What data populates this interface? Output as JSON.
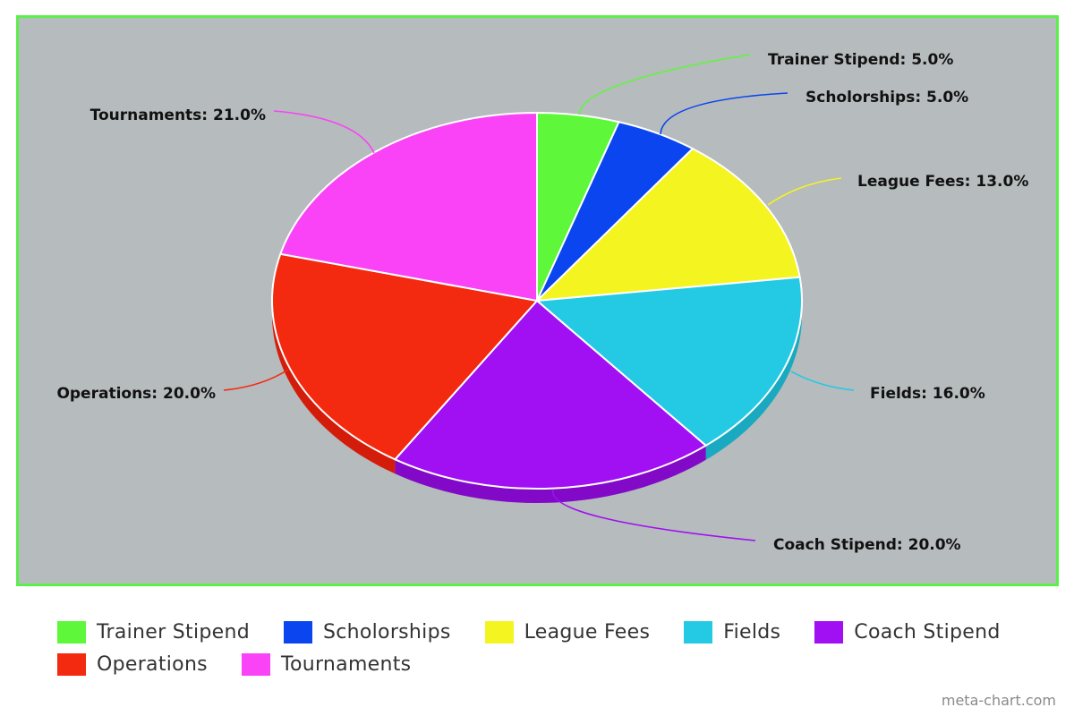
{
  "chart_data": {
    "type": "pie",
    "style": "3d",
    "categories": [
      "Trainer Stipend",
      "Scholorships",
      "League Fees",
      "Fields",
      "Coach Stipend",
      "Operations",
      "Tournaments"
    ],
    "values": [
      5.0,
      5.0,
      13.0,
      16.0,
      20.0,
      20.0,
      21.0
    ],
    "labels": [
      "Trainer Stipend: 5.0%",
      "Scholorships: 5.0%",
      "League Fees: 13.0%",
      "Fields: 16.0%",
      "Coach Stipend: 20.0%",
      "Operations: 20.0%",
      "Tournaments: 21.0%"
    ],
    "colors": [
      "#5ef73a",
      "#0a45f0",
      "#f4f421",
      "#24c9e4",
      "#a010f2",
      "#f42a10",
      "#fa42f6"
    ],
    "side_colors": [
      "#3fc426",
      "#0632b8",
      "#c9c91a",
      "#19a9c0",
      "#8209c8",
      "#d41c0a",
      "#d02ccc"
    ],
    "background": "#b6bbbd",
    "border_color": "#5bef4b",
    "legend_position": "bottom"
  },
  "legend": [
    [
      {
        "label": "Trainer Stipend",
        "color": "#5ef73a"
      },
      {
        "label": "Scholorships",
        "color": "#0a45f0"
      },
      {
        "label": "League Fees",
        "color": "#f4f421"
      },
      {
        "label": "Fields",
        "color": "#24c9e4"
      },
      {
        "label": "Coach Stipend",
        "color": "#a010f2"
      }
    ],
    [
      {
        "label": "Operations",
        "color": "#f42a10"
      },
      {
        "label": "Tournaments",
        "color": "#fa42f6"
      }
    ]
  ],
  "watermark": "meta-chart.com"
}
